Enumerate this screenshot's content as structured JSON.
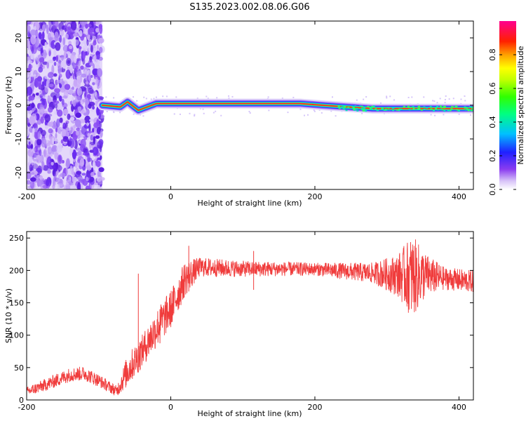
{
  "title": "S135.2023.002.08.06.G06",
  "colors": {
    "snr_line": "#f03c3c",
    "noise_purple": "#6a2cf0",
    "axis": "#000000"
  },
  "chart_data": [
    {
      "type": "heatmap",
      "name": "spectrogram",
      "xlabel": "Height of straight line (km)",
      "ylabel": "Frequency (Hz)",
      "xlim": [
        -200,
        420
      ],
      "ylim": [
        -25,
        25
      ],
      "x_ticks": [
        "-200",
        "0",
        "200",
        "400"
      ],
      "y_ticks": [
        "-20",
        "-10",
        "0",
        "10",
        "20"
      ],
      "colorbar": {
        "label": "Normalized spectral amplitude",
        "range": [
          0,
          1
        ],
        "ticks": [
          "0.0",
          "0.2",
          "0.4",
          "0.6",
          "0.8"
        ],
        "colormap": "rainbow (white-purple-blue-cyan-green-yellow-orange-red-magenta)"
      },
      "features": {
        "noise_region_x": [
          -200,
          -95
        ],
        "signal_start_x": -95,
        "signal_frequency_track": [
          {
            "x": -95,
            "f": 0.0
          },
          {
            "x": -70,
            "f": -0.5
          },
          {
            "x": -60,
            "f": 1.0
          },
          {
            "x": -45,
            "f": -1.5
          },
          {
            "x": -20,
            "f": 0.5
          },
          {
            "x": 50,
            "f": 0.5
          },
          {
            "x": 180,
            "f": 0.5
          },
          {
            "x": 210,
            "f": 0.0
          },
          {
            "x": 280,
            "f": -1.0
          },
          {
            "x": 420,
            "f": -1.0
          }
        ]
      }
    },
    {
      "type": "line",
      "name": "snr",
      "xlabel": "Height of straight line (km)",
      "ylabel": "SNR (10 * v/v)",
      "xlim": [
        -200,
        420
      ],
      "ylim": [
        0,
        260
      ],
      "x_ticks": [
        "-200",
        "0",
        "200",
        "400"
      ],
      "y_ticks": [
        "0",
        "50",
        "100",
        "150",
        "200",
        "250"
      ],
      "series": [
        {
          "envelope": [
            {
              "x": -200,
              "lo": 5,
              "hi": 20
            },
            {
              "x": -170,
              "lo": 15,
              "hi": 35
            },
            {
              "x": -140,
              "lo": 28,
              "hi": 50
            },
            {
              "x": -120,
              "lo": 30,
              "hi": 52
            },
            {
              "x": -100,
              "lo": 20,
              "hi": 40
            },
            {
              "x": -75,
              "lo": 5,
              "hi": 22
            },
            {
              "x": -60,
              "lo": 20,
              "hi": 70
            },
            {
              "x": -40,
              "lo": 50,
              "hi": 100
            },
            {
              "x": -20,
              "lo": 80,
              "hi": 140
            },
            {
              "x": 0,
              "lo": 110,
              "hi": 170
            },
            {
              "x": 20,
              "lo": 160,
              "hi": 215
            },
            {
              "x": 40,
              "lo": 190,
              "hi": 220
            },
            {
              "x": 100,
              "lo": 190,
              "hi": 215
            },
            {
              "x": 200,
              "lo": 192,
              "hi": 212
            },
            {
              "x": 280,
              "lo": 180,
              "hi": 212
            },
            {
              "x": 315,
              "lo": 160,
              "hi": 225
            },
            {
              "x": 335,
              "lo": 125,
              "hi": 255
            },
            {
              "x": 355,
              "lo": 160,
              "hi": 225
            },
            {
              "x": 380,
              "lo": 170,
              "hi": 205
            },
            {
              "x": 420,
              "lo": 165,
              "hi": 200
            }
          ],
          "spikes": [
            {
              "x": -45,
              "y": 195
            },
            {
              "x": 25,
              "y": 238
            },
            {
              "x": 115,
              "y": 230
            },
            {
              "x": 115,
              "y": 170
            },
            {
              "x": -15,
              "y": 140
            }
          ]
        }
      ]
    }
  ]
}
